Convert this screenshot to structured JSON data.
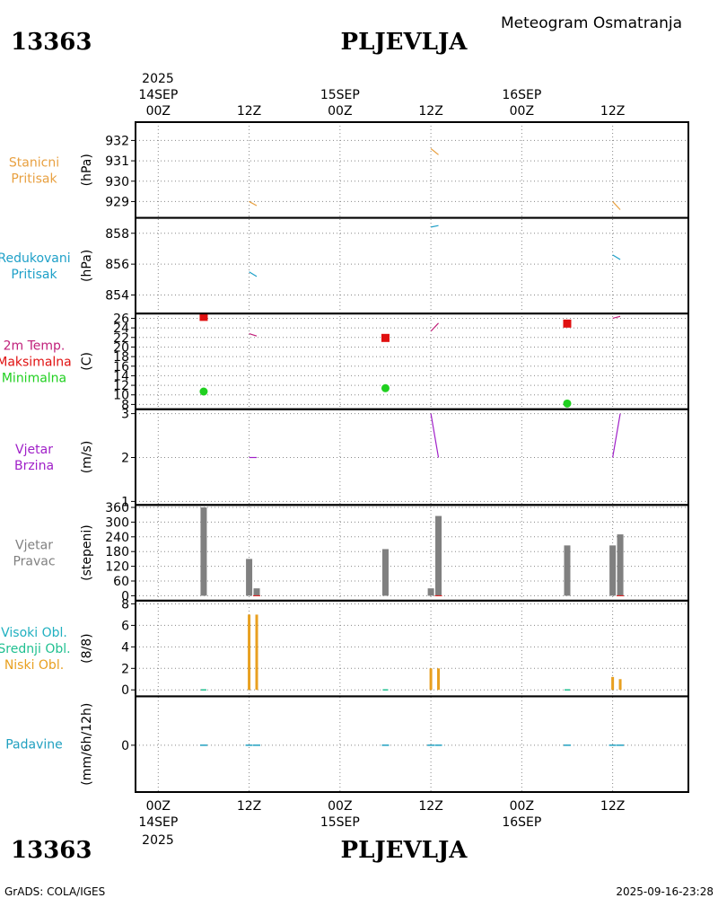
{
  "header": {
    "station_id": "13363",
    "station_name": "PLJEVLJA",
    "title": "Meteogram Osmatranja"
  },
  "footer": {
    "credit": "GrADS: COLA/IGES",
    "timestamp": "2025-09-16-23:28"
  },
  "x_axis": {
    "year": "2025",
    "ticks": [
      {
        "hour": 0,
        "label": "00Z",
        "date": "14SEP"
      },
      {
        "hour": 12,
        "label": "12Z",
        "date": ""
      },
      {
        "hour": 24,
        "label": "00Z",
        "date": "15SEP"
      },
      {
        "hour": 36,
        "label": "12Z",
        "date": ""
      },
      {
        "hour": 48,
        "label": "00Z",
        "date": "16SEP"
      },
      {
        "hour": 60,
        "label": "12Z",
        "date": ""
      }
    ],
    "xlim": [
      -3,
      70
    ]
  },
  "colors": {
    "pressure": "#e8a040",
    "reduced": "#1ea0c8",
    "tmax": "#e01010",
    "tmin": "#20d020",
    "temp": "#c0207a",
    "wind": "#a020c8",
    "dir": "#808080",
    "high_cloud": "#20b0c0",
    "mid_cloud": "#20c090",
    "low_cloud": "#e8a020",
    "precip": "#20a0c0"
  },
  "chart_data": [
    {
      "id": "p1",
      "type": "line",
      "labels": [
        "Stanicni",
        "Pritisak"
      ],
      "ylabel": "(hPa)",
      "ylim": [
        928.2,
        932.9
      ],
      "yticks": [
        929,
        930,
        931,
        932
      ],
      "color_key": "pressure",
      "segments": [
        [
          [
            12,
            929.0
          ],
          [
            13,
            928.8
          ]
        ],
        [
          [
            36,
            931.6
          ],
          [
            37,
            931.3
          ]
        ],
        [
          [
            60,
            929.0
          ],
          [
            61,
            928.6
          ]
        ]
      ]
    },
    {
      "id": "p2",
      "type": "line",
      "labels": [
        "Redukovani",
        "Pritisak"
      ],
      "ylabel": "(hPa)",
      "ylim": [
        852.8,
        859.0
      ],
      "yticks": [
        854,
        856,
        858
      ],
      "color_key": "reduced",
      "segments": [
        [
          [
            12,
            855.5
          ],
          [
            13,
            855.2
          ]
        ],
        [
          [
            36,
            858.4
          ],
          [
            37,
            858.5
          ]
        ],
        [
          [
            60,
            856.6
          ],
          [
            61,
            856.3
          ]
        ]
      ]
    },
    {
      "id": "p3",
      "type": "line",
      "labels": [
        "2m Temp.",
        "Maksimalna",
        "Minimalna"
      ],
      "label_color_keys": [
        "temp",
        "tmax",
        "tmin"
      ],
      "ylabel": "(C)",
      "ylim": [
        7,
        27
      ],
      "yticks": [
        8,
        10,
        12,
        14,
        16,
        18,
        20,
        22,
        24,
        26
      ],
      "color_key": "temp",
      "segments": [
        [
          [
            12,
            22.8
          ],
          [
            13,
            22.3
          ]
        ],
        [
          [
            36,
            23.3
          ],
          [
            37,
            25.0
          ]
        ],
        [
          [
            60,
            26.0
          ],
          [
            61,
            26.4
          ]
        ]
      ],
      "tmax": [
        [
          6,
          26.3
        ],
        [
          30,
          21.9
        ],
        [
          54,
          24.9
        ]
      ],
      "tmin": [
        [
          6,
          10.7
        ],
        [
          30,
          11.4
        ],
        [
          54,
          8.2
        ]
      ]
    },
    {
      "id": "p4",
      "type": "line",
      "labels": [
        "Vjetar",
        "Brzina"
      ],
      "ylabel": "(m/s)",
      "ylim": [
        0.92,
        3.1
      ],
      "yticks": [
        1,
        2,
        3
      ],
      "color_key": "wind",
      "segments": [
        [
          [
            12,
            2.0
          ],
          [
            13,
            2.0
          ]
        ],
        [
          [
            36,
            3.0
          ],
          [
            37,
            2.0
          ]
        ],
        [
          [
            60,
            2.0
          ],
          [
            61,
            3.0
          ]
        ]
      ]
    },
    {
      "id": "p5",
      "type": "bar",
      "labels": [
        "Vjetar",
        "Pravac"
      ],
      "ylabel": "(stepeni)",
      "ylim": [
        -20,
        370
      ],
      "yticks": [
        0,
        60,
        120,
        180,
        240,
        300,
        360
      ],
      "color_key": "dir",
      "bars": [
        [
          6,
          360
        ],
        [
          12,
          150
        ],
        [
          13,
          30
        ],
        [
          30,
          190
        ],
        [
          36,
          30
        ],
        [
          37,
          325
        ],
        [
          54,
          205
        ],
        [
          60,
          205
        ],
        [
          61,
          250
        ]
      ],
      "marks": [
        13,
        37,
        61
      ]
    },
    {
      "id": "p6",
      "type": "bar",
      "labels": [
        "Visoki Obl.",
        "Srednji Obl.",
        "Niski Obl."
      ],
      "label_color_keys": [
        "high_cloud",
        "mid_cloud",
        "low_cloud"
      ],
      "ylabel": "(8/8)",
      "ylim": [
        -0.6,
        8.3
      ],
      "yticks": [
        0,
        2,
        4,
        6,
        8
      ],
      "color_key": "low_cloud",
      "bars": [
        [
          12,
          7
        ],
        [
          13,
          7
        ],
        [
          36,
          2
        ],
        [
          37,
          2
        ],
        [
          60,
          1.2
        ],
        [
          61,
          1
        ]
      ],
      "zeros": [
        6,
        30,
        54
      ]
    },
    {
      "id": "p7",
      "type": "bar",
      "labels": [
        "Padavine"
      ],
      "ylabel": "(mm/6h/12h)",
      "ylim": [
        -4.5,
        4.7
      ],
      "yticks": [
        0
      ],
      "color_key": "precip",
      "bars": [
        [
          6,
          0
        ],
        [
          12,
          0
        ],
        [
          13,
          0
        ],
        [
          30,
          0
        ],
        [
          36,
          0
        ],
        [
          37,
          0
        ],
        [
          54,
          0
        ],
        [
          60,
          0
        ],
        [
          61,
          0
        ]
      ]
    }
  ]
}
